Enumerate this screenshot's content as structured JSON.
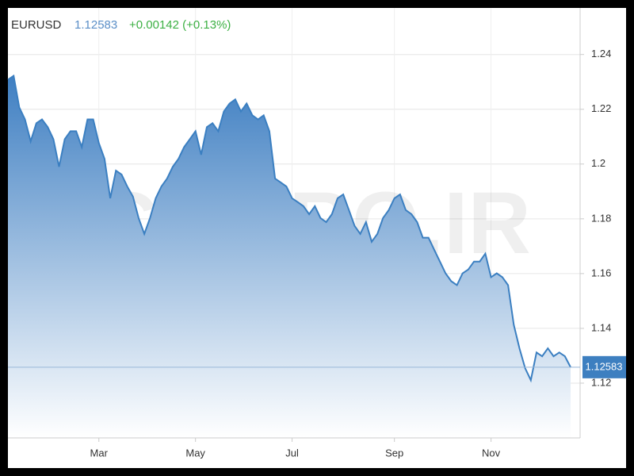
{
  "chart_data": {
    "type": "area",
    "symbol": "EURUSD",
    "price": 1.12583,
    "change": "+0.00142 (+0.13%)",
    "watermark": "CMPRO.IR",
    "categories": [
      null,
      null,
      null,
      null,
      null,
      null,
      null,
      null,
      null,
      null,
      null,
      null,
      null,
      null,
      null,
      null,
      "Mar",
      null,
      null,
      null,
      null,
      null,
      null,
      null,
      null,
      null,
      null,
      null,
      null,
      null,
      null,
      null,
      null,
      "May",
      null,
      null,
      null,
      null,
      null,
      null,
      null,
      null,
      null,
      null,
      null,
      null,
      null,
      null,
      null,
      null,
      "Jul",
      null,
      null,
      null,
      null,
      null,
      null,
      null,
      null,
      null,
      null,
      null,
      null,
      null,
      null,
      null,
      null,
      null,
      "Sep",
      null,
      null,
      null,
      null,
      null,
      null,
      null,
      null,
      null,
      null,
      null,
      null,
      null,
      null,
      null,
      null,
      "Nov",
      null,
      null,
      null,
      null,
      null,
      null,
      null,
      null,
      null,
      null,
      null,
      null,
      null,
      null
    ],
    "series": [
      {
        "name": "EURUSD",
        "color": "#3b7fc1",
        "values": [
          1.2308,
          1.2322,
          1.2207,
          1.2163,
          1.2083,
          1.2149,
          1.2163,
          1.2135,
          1.2091,
          1.199,
          1.2091,
          1.212,
          1.212,
          1.2062,
          1.2163,
          1.2163,
          1.2077,
          1.2019,
          1.1875,
          1.1976,
          1.1962,
          1.1918,
          1.1881,
          1.1803,
          1.1745,
          1.1803,
          1.1875,
          1.1918,
          1.1947,
          1.199,
          1.2019,
          1.2062,
          1.2091,
          1.212,
          1.2034,
          1.2135,
          1.2149,
          1.212,
          1.2192,
          1.2221,
          1.2236,
          1.2192,
          1.2221,
          1.2178,
          1.2163,
          1.2178,
          1.212,
          1.1947,
          1.1933,
          1.1918,
          1.1875,
          1.1861,
          1.1846,
          1.1817,
          1.1846,
          1.1803,
          1.1788,
          1.1817,
          1.1875,
          1.1889,
          1.1832,
          1.1774,
          1.1745,
          1.1788,
          1.1716,
          1.1745,
          1.1803,
          1.1832,
          1.1875,
          1.1889,
          1.1832,
          1.1817,
          1.1788,
          1.1731,
          1.1731,
          1.1687,
          1.1644,
          1.1601,
          1.1572,
          1.1558,
          1.1601,
          1.1615,
          1.1644,
          1.1644,
          1.1673,
          1.1587,
          1.1601,
          1.1587,
          1.1558,
          1.1413,
          1.1327,
          1.1255,
          1.1211,
          1.1312,
          1.1298,
          1.1327,
          1.1298,
          1.1312,
          1.1298,
          1.1258
        ]
      }
    ],
    "ylim": [
      1.1,
      1.257
    ],
    "yticks": [
      1.12,
      1.14,
      1.16,
      1.18,
      1.2,
      1.22,
      1.24
    ],
    "grid": true
  }
}
